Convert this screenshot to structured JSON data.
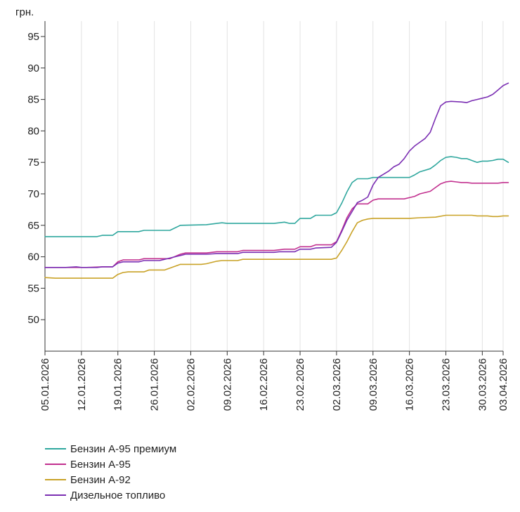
{
  "chart_data": {
    "type": "line",
    "ylabel": "грн.",
    "ylim": [
      45,
      95
    ],
    "yticks": [
      50,
      55,
      60,
      65,
      70,
      75,
      80,
      85,
      90,
      95
    ],
    "x_tick_labels": [
      "05.01.2026",
      "12.01.2026",
      "19.01.2026",
      "26.01.2026",
      "02.02.2026",
      "09.02.2026",
      "16.02.2026",
      "23.02.2026",
      "02.03.2026",
      "09.03.2026",
      "16.03.2026",
      "23.03.2026",
      "30.03.2026",
      "03.04.2026"
    ],
    "x_tick_days": [
      0,
      7,
      14,
      21,
      28,
      35,
      42,
      49,
      56,
      63,
      70,
      77,
      84,
      88
    ],
    "grid": "vertical",
    "legend_position": "bottom-left",
    "series": [
      {
        "name": "Бензин А-95 премиум",
        "color": "#2fa79e",
        "points": [
          [
            0,
            63.2
          ],
          [
            10,
            63.2
          ],
          [
            11,
            63.4
          ],
          [
            13,
            63.4
          ],
          [
            14,
            64.0
          ],
          [
            18,
            64.0
          ],
          [
            19,
            64.2
          ],
          [
            24,
            64.2
          ],
          [
            26,
            65.0
          ],
          [
            31,
            65.1
          ],
          [
            33,
            65.3
          ],
          [
            34,
            65.4
          ],
          [
            35,
            65.3
          ],
          [
            44,
            65.3
          ],
          [
            45,
            65.4
          ],
          [
            46,
            65.5
          ],
          [
            47,
            65.3
          ],
          [
            48,
            65.3
          ],
          [
            49,
            66.1
          ],
          [
            51,
            66.1
          ],
          [
            52,
            66.6
          ],
          [
            55,
            66.6
          ],
          [
            56,
            67.0
          ],
          [
            57,
            68.5
          ],
          [
            58,
            70.3
          ],
          [
            59,
            71.8
          ],
          [
            60,
            72.4
          ],
          [
            62,
            72.4
          ],
          [
            63,
            72.6
          ],
          [
            69,
            72.6
          ],
          [
            70,
            72.6
          ],
          [
            71,
            73.0
          ],
          [
            72,
            73.5
          ],
          [
            74,
            74.0
          ],
          [
            75,
            74.6
          ],
          [
            76,
            75.3
          ],
          [
            77,
            75.8
          ],
          [
            78,
            75.9
          ],
          [
            79,
            75.8
          ],
          [
            80,
            75.6
          ],
          [
            81,
            75.6
          ],
          [
            82,
            75.3
          ],
          [
            83,
            75.0
          ],
          [
            84,
            75.2
          ],
          [
            85,
            75.2
          ],
          [
            86,
            75.3
          ],
          [
            87,
            75.5
          ],
          [
            88,
            75.5
          ],
          [
            89,
            75.0
          ]
        ]
      },
      {
        "name": "Бензин А-95",
        "color": "#c2308f",
        "points": [
          [
            0,
            58.3
          ],
          [
            4,
            58.3
          ],
          [
            6,
            58.3
          ],
          [
            8,
            58.3
          ],
          [
            11,
            58.4
          ],
          [
            13,
            58.4
          ],
          [
            14,
            59.2
          ],
          [
            15,
            59.5
          ],
          [
            18,
            59.5
          ],
          [
            19,
            59.7
          ],
          [
            24,
            59.7
          ],
          [
            26,
            60.4
          ],
          [
            27,
            60.6
          ],
          [
            31,
            60.6
          ],
          [
            33,
            60.8
          ],
          [
            37,
            60.8
          ],
          [
            38,
            61.0
          ],
          [
            44,
            61.0
          ],
          [
            45,
            61.1
          ],
          [
            46,
            61.2
          ],
          [
            47,
            61.2
          ],
          [
            48,
            61.2
          ],
          [
            49,
            61.6
          ],
          [
            51,
            61.6
          ],
          [
            52,
            61.9
          ],
          [
            55,
            61.9
          ],
          [
            56,
            62.4
          ],
          [
            57,
            64.2
          ],
          [
            58,
            66.2
          ],
          [
            59,
            67.6
          ],
          [
            60,
            68.4
          ],
          [
            62,
            68.4
          ],
          [
            63,
            69.0
          ],
          [
            64,
            69.2
          ],
          [
            69,
            69.2
          ],
          [
            70,
            69.4
          ],
          [
            71,
            69.6
          ],
          [
            72,
            70.0
          ],
          [
            74,
            70.4
          ],
          [
            75,
            71.0
          ],
          [
            76,
            71.6
          ],
          [
            77,
            71.9
          ],
          [
            78,
            72.0
          ],
          [
            79,
            71.9
          ],
          [
            80,
            71.8
          ],
          [
            81,
            71.8
          ],
          [
            82,
            71.7
          ],
          [
            84,
            71.7
          ],
          [
            87,
            71.7
          ],
          [
            88,
            71.8
          ],
          [
            89,
            71.8
          ]
        ]
      },
      {
        "name": "Бензин А-92",
        "color": "#c9a227",
        "points": [
          [
            0,
            56.7
          ],
          [
            2,
            56.6
          ],
          [
            3,
            56.6
          ],
          [
            5,
            56.6
          ],
          [
            13,
            56.6
          ],
          [
            14,
            57.2
          ],
          [
            15,
            57.5
          ],
          [
            16,
            57.6
          ],
          [
            19,
            57.6
          ],
          [
            20,
            57.9
          ],
          [
            23,
            57.9
          ],
          [
            24,
            58.2
          ],
          [
            26,
            58.8
          ],
          [
            30,
            58.8
          ],
          [
            31,
            58.9
          ],
          [
            33,
            59.3
          ],
          [
            34,
            59.4
          ],
          [
            37,
            59.4
          ],
          [
            38,
            59.6
          ],
          [
            55,
            59.6
          ],
          [
            56,
            59.8
          ],
          [
            57,
            61.0
          ],
          [
            58,
            62.4
          ],
          [
            59,
            64.0
          ],
          [
            60,
            65.4
          ],
          [
            61,
            65.8
          ],
          [
            62,
            66.0
          ],
          [
            63,
            66.1
          ],
          [
            70,
            66.1
          ],
          [
            72,
            66.2
          ],
          [
            75,
            66.3
          ],
          [
            77,
            66.6
          ],
          [
            82,
            66.6
          ],
          [
            83,
            66.5
          ],
          [
            85,
            66.5
          ],
          [
            86,
            66.4
          ],
          [
            87,
            66.4
          ],
          [
            88,
            66.5
          ],
          [
            89,
            66.5
          ]
        ]
      },
      {
        "name": "Дизельное топливо",
        "color": "#7b2fb3",
        "points": [
          [
            0,
            58.3
          ],
          [
            4,
            58.3
          ],
          [
            6,
            58.4
          ],
          [
            7,
            58.3
          ],
          [
            8,
            58.3
          ],
          [
            10,
            58.3
          ],
          [
            11,
            58.4
          ],
          [
            13,
            58.4
          ],
          [
            14,
            59.0
          ],
          [
            15,
            59.2
          ],
          [
            18,
            59.2
          ],
          [
            19,
            59.4
          ],
          [
            22,
            59.4
          ],
          [
            23,
            59.6
          ],
          [
            24,
            59.8
          ],
          [
            26,
            60.2
          ],
          [
            27,
            60.4
          ],
          [
            31,
            60.4
          ],
          [
            33,
            60.5
          ],
          [
            37,
            60.5
          ],
          [
            38,
            60.7
          ],
          [
            44,
            60.7
          ],
          [
            45,
            60.8
          ],
          [
            48,
            60.8
          ],
          [
            49,
            61.2
          ],
          [
            51,
            61.2
          ],
          [
            52,
            61.4
          ],
          [
            55,
            61.5
          ],
          [
            56,
            62.3
          ],
          [
            57,
            64.0
          ],
          [
            58,
            65.8
          ],
          [
            59,
            67.2
          ],
          [
            60,
            68.6
          ],
          [
            61,
            69.0
          ],
          [
            62,
            69.5
          ],
          [
            63,
            71.4
          ],
          [
            64,
            72.6
          ],
          [
            65,
            73.1
          ],
          [
            66,
            73.6
          ],
          [
            67,
            74.3
          ],
          [
            68,
            74.7
          ],
          [
            69,
            75.6
          ],
          [
            70,
            76.8
          ],
          [
            71,
            77.6
          ],
          [
            72,
            78.2
          ],
          [
            73,
            78.8
          ],
          [
            74,
            79.8
          ],
          [
            75,
            82.0
          ],
          [
            76,
            84.0
          ],
          [
            77,
            84.6
          ],
          [
            78,
            84.7
          ],
          [
            80,
            84.6
          ],
          [
            81,
            84.5
          ],
          [
            82,
            84.8
          ],
          [
            83,
            85.0
          ],
          [
            84,
            85.2
          ],
          [
            85,
            85.4
          ],
          [
            86,
            85.8
          ],
          [
            87,
            86.5
          ],
          [
            88,
            87.2
          ],
          [
            89,
            87.6
          ]
        ]
      }
    ]
  }
}
